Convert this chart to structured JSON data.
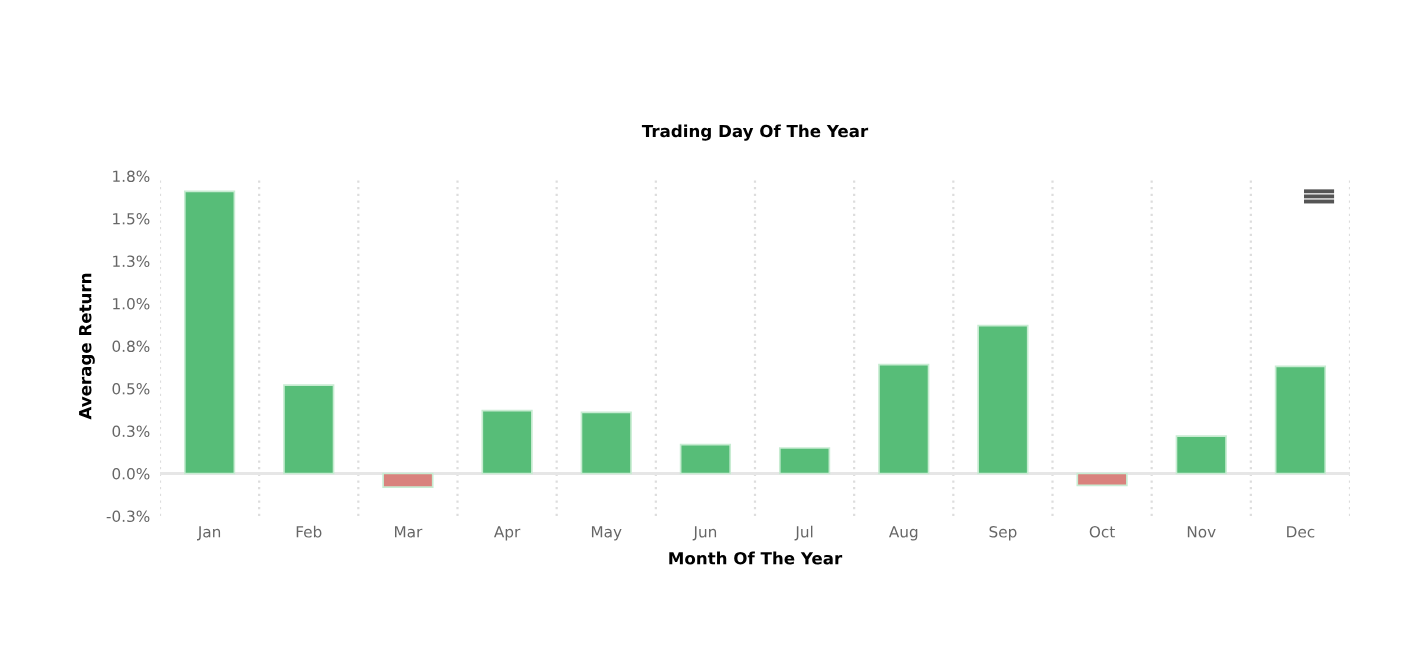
{
  "chart_data": {
    "type": "bar",
    "title": "Trading Day Of The Year",
    "xlabel": "Month Of The Year",
    "ylabel": "Average Return",
    "categories": [
      "Jan",
      "Feb",
      "Mar",
      "Apr",
      "May",
      "Jun",
      "Jul",
      "Aug",
      "Sep",
      "Oct",
      "Nov",
      "Dec"
    ],
    "values": [
      1.66,
      0.52,
      -0.08,
      0.37,
      0.36,
      0.17,
      0.15,
      0.64,
      0.87,
      -0.07,
      0.22,
      0.63
    ],
    "colors": [
      "#57bd78",
      "#57bd78",
      "#d9827d",
      "#57bd78",
      "#57bd78",
      "#57bd78",
      "#57bd78",
      "#57bd78",
      "#57bd78",
      "#d9827d",
      "#57bd78",
      "#57bd78"
    ],
    "ylim": [
      -0.25,
      1.75
    ],
    "yticks": [
      {
        "value": -0.25,
        "label": "-0.3%"
      },
      {
        "value": 0,
        "label": "0.0%"
      },
      {
        "value": 0.25,
        "label": "0.3%"
      },
      {
        "value": 0.5,
        "label": "0.5%"
      },
      {
        "value": 0.75,
        "label": "0.8%"
      },
      {
        "value": 1.0,
        "label": "1.0%"
      },
      {
        "value": 1.25,
        "label": "1.3%"
      },
      {
        "value": 1.5,
        "label": "1.5%"
      },
      {
        "value": 1.75,
        "label": "1.8%"
      }
    ],
    "grid": "x"
  }
}
